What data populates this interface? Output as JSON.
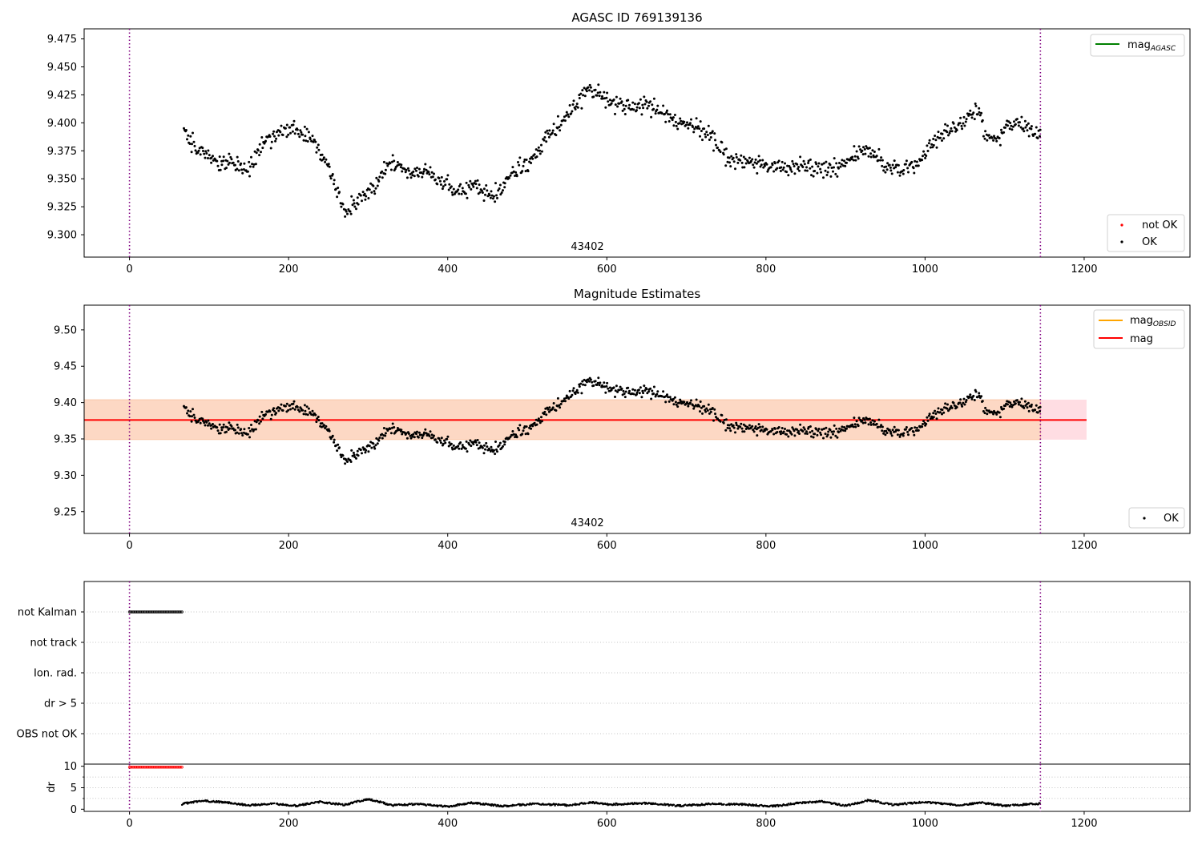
{
  "chart_data": [
    {
      "type": "scatter",
      "title": "AGASC ID 769139136",
      "xlabel": "",
      "ylabel": "",
      "xlim": [
        -57,
        1333
      ],
      "ylim": [
        9.28,
        9.484
      ],
      "xticks": [
        0,
        200,
        400,
        600,
        800,
        1000,
        1200
      ],
      "yticks": [
        9.3,
        9.325,
        9.35,
        9.375,
        9.4,
        9.425,
        9.45,
        9.475
      ],
      "vlines": [
        0,
        1145
      ],
      "annotation": "43402",
      "legend_lines": [
        {
          "label": "mag",
          "subscript": "AGASC",
          "color": "#008000"
        }
      ],
      "legend_points": [
        {
          "label": "not OK",
          "color": "#ff0000"
        },
        {
          "label": "OK",
          "color": "#000000"
        }
      ],
      "series_trend": {
        "name": "OK",
        "color": "#000000",
        "x_start": 68,
        "x_end": 1145,
        "trend": [
          [
            68,
            9.395
          ],
          [
            85,
            9.375
          ],
          [
            110,
            9.365
          ],
          [
            130,
            9.362
          ],
          [
            150,
            9.358
          ],
          [
            170,
            9.385
          ],
          [
            190,
            9.392
          ],
          [
            210,
            9.395
          ],
          [
            230,
            9.385
          ],
          [
            250,
            9.36
          ],
          [
            270,
            9.322
          ],
          [
            290,
            9.332
          ],
          [
            310,
            9.345
          ],
          [
            330,
            9.365
          ],
          [
            350,
            9.355
          ],
          [
            370,
            9.356
          ],
          [
            390,
            9.348
          ],
          [
            410,
            9.338
          ],
          [
            430,
            9.345
          ],
          [
            450,
            9.338
          ],
          [
            465,
            9.336
          ],
          [
            480,
            9.355
          ],
          [
            500,
            9.362
          ],
          [
            520,
            9.382
          ],
          [
            540,
            9.398
          ],
          [
            560,
            9.415
          ],
          [
            575,
            9.428
          ],
          [
            590,
            9.425
          ],
          [
            610,
            9.418
          ],
          [
            630,
            9.415
          ],
          [
            650,
            9.418
          ],
          [
            670,
            9.408
          ],
          [
            690,
            9.4
          ],
          [
            710,
            9.398
          ],
          [
            730,
            9.39
          ],
          [
            750,
            9.368
          ],
          [
            770,
            9.365
          ],
          [
            790,
            9.365
          ],
          [
            810,
            9.36
          ],
          [
            830,
            9.36
          ],
          [
            850,
            9.36
          ],
          [
            870,
            9.362
          ],
          [
            890,
            9.36
          ],
          [
            910,
            9.37
          ],
          [
            930,
            9.376
          ],
          [
            950,
            9.362
          ],
          [
            970,
            9.36
          ],
          [
            990,
            9.362
          ],
          [
            1010,
            9.385
          ],
          [
            1030,
            9.395
          ],
          [
            1050,
            9.402
          ],
          [
            1065,
            9.415
          ],
          [
            1075,
            9.39
          ],
          [
            1090,
            9.385
          ],
          [
            1110,
            9.4
          ],
          [
            1130,
            9.395
          ],
          [
            1145,
            9.39
          ]
        ]
      }
    },
    {
      "type": "scatter",
      "title": "Magnitude Estimates",
      "xlabel": "",
      "ylabel": "",
      "xlim": [
        -57,
        1333
      ],
      "ylim": [
        9.22,
        9.534
      ],
      "xticks": [
        0,
        200,
        400,
        600,
        800,
        1000,
        1200
      ],
      "yticks": [
        9.25,
        9.3,
        9.35,
        9.4,
        9.45,
        9.5
      ],
      "vlines": [
        0,
        1145
      ],
      "annotation": "43402",
      "mag_line": {
        "y": 9.376,
        "x_start": -57,
        "x_end": 1203,
        "color": "#ff0000"
      },
      "bands": [
        {
          "y_low": 9.349,
          "y_high": 9.404,
          "x_start": -57,
          "x_end": 1203,
          "color": "#ffdde3"
        },
        {
          "y_low": 9.349,
          "y_high": 9.404,
          "x_start": -57,
          "x_end": 1145,
          "color": "#fdd8c4"
        }
      ],
      "legend_lines": [
        {
          "label": "mag",
          "subscript": "OBSID",
          "color": "#ffa500"
        },
        {
          "label": "mag",
          "subscript": "",
          "color": "#ff0000"
        }
      ],
      "legend_points": [
        {
          "label": "OK",
          "color": "#000000"
        }
      ]
    },
    {
      "type": "scatter",
      "title": "",
      "xlim": [
        -57,
        1333
      ],
      "categories": [
        "not Kalman",
        "not track",
        "Ion. rad.",
        "dr > 5",
        "OBS not OK"
      ],
      "vlines": [
        0,
        1145
      ],
      "flag_segments": [
        {
          "category": "not Kalman",
          "x_start": 0,
          "x_end": 66,
          "color": "#000000"
        }
      ]
    },
    {
      "type": "line",
      "title": "",
      "xlabel": "",
      "ylabel": "dr",
      "xlim": [
        -57,
        1333
      ],
      "ylim": [
        -0.5,
        10.5
      ],
      "xticks": [
        0,
        200,
        400,
        600,
        800,
        1000,
        1200
      ],
      "yticks": [
        0,
        5,
        10
      ],
      "vlines": [
        0,
        1145
      ],
      "clipped_segment": {
        "x_start": 0,
        "x_end": 66,
        "y": 9.8,
        "color": "#ff0000"
      },
      "dr_range": [
        0.2,
        2.5
      ],
      "dr_trend": [
        [
          66,
          1.2
        ],
        [
          90,
          2.0
        ],
        [
          120,
          1.6
        ],
        [
          150,
          0.9
        ],
        [
          180,
          1.3
        ],
        [
          210,
          0.8
        ],
        [
          240,
          1.7
        ],
        [
          270,
          1.0
        ],
        [
          300,
          2.4
        ],
        [
          330,
          0.9
        ],
        [
          360,
          1.2
        ],
        [
          400,
          0.6
        ],
        [
          430,
          1.5
        ],
        [
          470,
          0.7
        ],
        [
          510,
          1.3
        ],
        [
          550,
          0.9
        ],
        [
          580,
          1.6
        ],
        [
          600,
          1.1
        ],
        [
          650,
          1.4
        ],
        [
          690,
          0.8
        ],
        [
          730,
          1.2
        ],
        [
          770,
          1.1
        ],
        [
          810,
          0.7
        ],
        [
          840,
          1.4
        ],
        [
          870,
          1.8
        ],
        [
          900,
          0.8
        ],
        [
          930,
          2.1
        ],
        [
          960,
          1.0
        ],
        [
          1000,
          1.7
        ],
        [
          1040,
          0.9
        ],
        [
          1070,
          1.5
        ],
        [
          1100,
          0.8
        ],
        [
          1145,
          1.3
        ]
      ]
    }
  ]
}
